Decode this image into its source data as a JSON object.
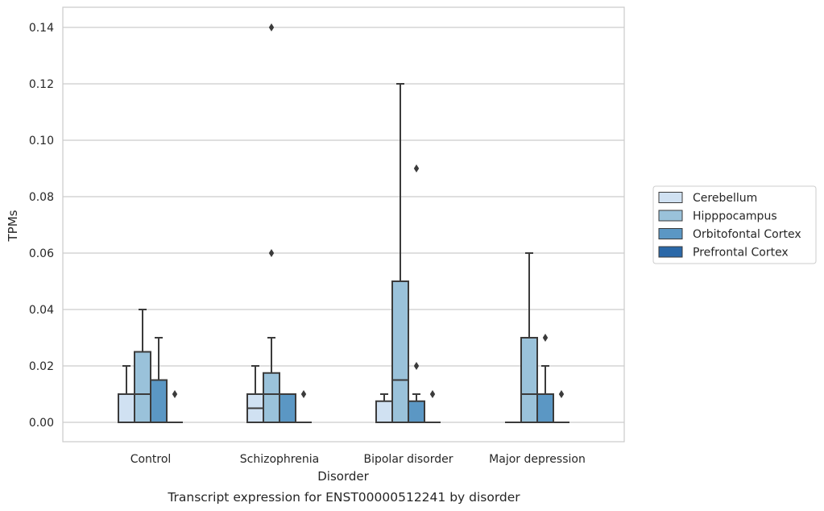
{
  "chart_data": {
    "type": "box",
    "xlabel": "Disorder",
    "ylabel": "TPMs",
    "caption": "Transcript expression for ENST00000512241 by disorder",
    "categories": [
      "Control",
      "Schizophrenia",
      "Bipolar disorder",
      "Major depression"
    ],
    "ylim": [
      -0.007,
      0.147
    ],
    "yticks": [
      0.0,
      0.02,
      0.04,
      0.06,
      0.08,
      0.1,
      0.12,
      0.14
    ],
    "ytick_labels": [
      "0.00",
      "0.02",
      "0.04",
      "0.06",
      "0.08",
      "0.10",
      "0.12",
      "0.14"
    ],
    "grid": "horizontal",
    "legend_position": "right",
    "series": [
      {
        "name": "Cerebellum",
        "color": "#d0e1f2",
        "boxes": [
          {
            "whislo": 0,
            "q1": 0,
            "med": 0,
            "q3": 0.01,
            "whishi": 0.02,
            "fliers": []
          },
          {
            "whislo": 0,
            "q1": 0,
            "med": 0.005,
            "q3": 0.01,
            "whishi": 0.02,
            "fliers": []
          },
          {
            "whislo": 0,
            "q1": 0,
            "med": 0,
            "q3": 0.0075,
            "whishi": 0.01,
            "fliers": []
          },
          {
            "whislo": 0,
            "q1": 0,
            "med": 0,
            "q3": 0,
            "whishi": 0,
            "fliers": []
          }
        ]
      },
      {
        "name": "Hipppocampus",
        "color": "#9ac2da",
        "boxes": [
          {
            "whislo": 0,
            "q1": 0,
            "med": 0.01,
            "q3": 0.025,
            "whishi": 0.04,
            "fliers": []
          },
          {
            "whislo": 0,
            "q1": 0,
            "med": 0.01,
            "q3": 0.0175,
            "whishi": 0.03,
            "fliers": [
              0.06,
              0.14
            ]
          },
          {
            "whislo": 0,
            "q1": 0,
            "med": 0.015,
            "q3": 0.05,
            "whishi": 0.12,
            "fliers": []
          },
          {
            "whislo": 0,
            "q1": 0,
            "med": 0.01,
            "q3": 0.03,
            "whishi": 0.06,
            "fliers": []
          }
        ]
      },
      {
        "name": "Orbitofontal Cortex",
        "color": "#5b97c4",
        "boxes": [
          {
            "whislo": 0,
            "q1": 0,
            "med": 0,
            "q3": 0.015,
            "whishi": 0.03,
            "fliers": []
          },
          {
            "whislo": 0,
            "q1": 0,
            "med": 0.01,
            "q3": 0.01,
            "whishi": 0.01,
            "fliers": []
          },
          {
            "whislo": 0,
            "q1": 0,
            "med": 0,
            "q3": 0.0075,
            "whishi": 0.01,
            "fliers": [
              0.02,
              0.09
            ]
          },
          {
            "whislo": 0,
            "q1": 0,
            "med": 0.01,
            "q3": 0.01,
            "whishi": 0.02,
            "fliers": [
              0.03
            ]
          }
        ]
      },
      {
        "name": "Prefrontal Cortex",
        "color": "#2a68a8",
        "boxes": [
          {
            "whislo": 0,
            "q1": 0,
            "med": 0,
            "q3": 0,
            "whishi": 0,
            "fliers": [
              0.01
            ]
          },
          {
            "whislo": 0,
            "q1": 0,
            "med": 0,
            "q3": 0,
            "whishi": 0,
            "fliers": [
              0.01
            ]
          },
          {
            "whislo": 0,
            "q1": 0,
            "med": 0,
            "q3": 0,
            "whishi": 0,
            "fliers": [
              0.01
            ]
          },
          {
            "whislo": 0,
            "q1": 0,
            "med": 0,
            "q3": 0,
            "whishi": 0,
            "fliers": [
              0.01
            ]
          }
        ]
      }
    ],
    "colors": {
      "edge": "#3b3b3b",
      "grid": "#cccccc",
      "frame": "#cccccc",
      "text": "#262626"
    }
  }
}
